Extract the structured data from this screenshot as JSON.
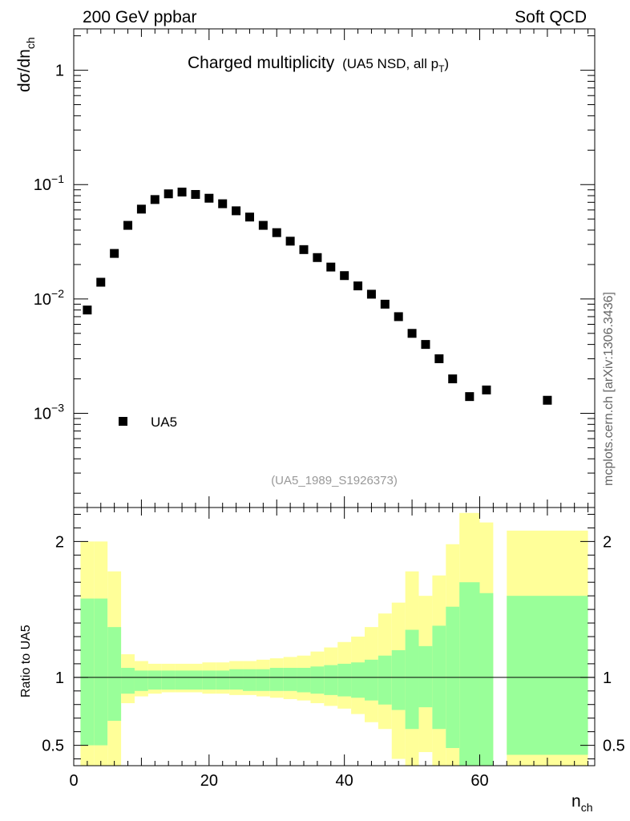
{
  "header": {
    "energy_label": "200 GeV ppbar",
    "process_label": "Soft QCD"
  },
  "side_label": "mcplots.cern.ch [arXiv:1306.3436]",
  "chart_data": [
    {
      "type": "scatter",
      "title": "Charged multiplicity",
      "subtitle": "(UA5 NSD, all p",
      "subtitle_sub": "T",
      "subtitle_end": ")",
      "analysis_id": "(UA5_1989_S1926373)",
      "xlabel": "n",
      "xlabel_sub": "ch",
      "ylabel": "dσ/dn",
      "ylabel_sub": "ch",
      "yscale": "log",
      "xlim": [
        0,
        77
      ],
      "ylim": [
        0.00015,
        2.3
      ],
      "y_ticks": [
        {
          "value": 1,
          "base": "1",
          "exp": ""
        },
        {
          "value": 0.1,
          "base": "10",
          "exp": "−1"
        },
        {
          "value": 0.01,
          "base": "10",
          "exp": "−2"
        },
        {
          "value": 0.001,
          "base": "10",
          "exp": "−3"
        }
      ],
      "legend": [
        {
          "label": "UA5",
          "marker": "square",
          "color": "#000000"
        }
      ],
      "series": [
        {
          "name": "UA5",
          "x": [
            2,
            4,
            6,
            8,
            10,
            12,
            14,
            16,
            18,
            20,
            22,
            24,
            26,
            28,
            30,
            32,
            34,
            36,
            38,
            40,
            42,
            44,
            46,
            48,
            50,
            52,
            54,
            56,
            58.5,
            61,
            70
          ],
          "y": [
            0.008,
            0.014,
            0.025,
            0.044,
            0.061,
            0.074,
            0.083,
            0.086,
            0.082,
            0.076,
            0.068,
            0.059,
            0.052,
            0.044,
            0.038,
            0.032,
            0.027,
            0.023,
            0.019,
            0.016,
            0.013,
            0.011,
            0.009,
            0.007,
            0.005,
            0.004,
            0.003,
            0.002,
            0.0014,
            0.0016,
            0.0013
          ]
        }
      ]
    },
    {
      "type": "area",
      "ylabel": "Ratio to UA5",
      "xlim": [
        0,
        77
      ],
      "ylim": [
        0.35,
        2.25
      ],
      "x_ticks": [
        0,
        20,
        40,
        60
      ],
      "y_ticks": [
        0.5,
        1,
        2
      ],
      "y_tick_labels": [
        "0.5",
        "1",
        "2"
      ],
      "reference_line": 1,
      "colors": {
        "inner_band": "#99ff99",
        "outer_band": "#ffff99",
        "line": "#000000"
      },
      "bins": [
        {
          "x0": 1,
          "x1": 3,
          "in_lo": 0.5,
          "in_hi": 1.58,
          "out_lo": 0.3,
          "out_hi": 2.0
        },
        {
          "x0": 3,
          "x1": 5,
          "in_lo": 0.5,
          "in_hi": 1.58,
          "out_lo": 0.3,
          "out_hi": 2.0
        },
        {
          "x0": 5,
          "x1": 7,
          "in_lo": 0.68,
          "in_hi": 1.37,
          "out_lo": 0.3,
          "out_hi": 1.78
        },
        {
          "x0": 7,
          "x1": 9,
          "in_lo": 0.88,
          "in_hi": 1.07,
          "out_lo": 0.81,
          "out_hi": 1.17
        },
        {
          "x0": 9,
          "x1": 11,
          "in_lo": 0.9,
          "in_hi": 1.05,
          "out_lo": 0.86,
          "out_hi": 1.12
        },
        {
          "x0": 11,
          "x1": 13,
          "in_lo": 0.91,
          "in_hi": 1.05,
          "out_lo": 0.88,
          "out_hi": 1.1
        },
        {
          "x0": 13,
          "x1": 15,
          "in_lo": 0.91,
          "in_hi": 1.05,
          "out_lo": 0.89,
          "out_hi": 1.1
        },
        {
          "x0": 15,
          "x1": 17,
          "in_lo": 0.91,
          "in_hi": 1.05,
          "out_lo": 0.89,
          "out_hi": 1.1
        },
        {
          "x0": 17,
          "x1": 19,
          "in_lo": 0.91,
          "in_hi": 1.05,
          "out_lo": 0.89,
          "out_hi": 1.1
        },
        {
          "x0": 19,
          "x1": 21,
          "in_lo": 0.91,
          "in_hi": 1.05,
          "out_lo": 0.88,
          "out_hi": 1.11
        },
        {
          "x0": 21,
          "x1": 23,
          "in_lo": 0.91,
          "in_hi": 1.05,
          "out_lo": 0.88,
          "out_hi": 1.11
        },
        {
          "x0": 23,
          "x1": 25,
          "in_lo": 0.91,
          "in_hi": 1.06,
          "out_lo": 0.87,
          "out_hi": 1.12
        },
        {
          "x0": 25,
          "x1": 27,
          "in_lo": 0.9,
          "in_hi": 1.06,
          "out_lo": 0.87,
          "out_hi": 1.12
        },
        {
          "x0": 27,
          "x1": 29,
          "in_lo": 0.9,
          "in_hi": 1.06,
          "out_lo": 0.86,
          "out_hi": 1.13
        },
        {
          "x0": 29,
          "x1": 31,
          "in_lo": 0.9,
          "in_hi": 1.07,
          "out_lo": 0.85,
          "out_hi": 1.14
        },
        {
          "x0": 31,
          "x1": 33,
          "in_lo": 0.9,
          "in_hi": 1.07,
          "out_lo": 0.84,
          "out_hi": 1.15
        },
        {
          "x0": 33,
          "x1": 35,
          "in_lo": 0.89,
          "in_hi": 1.07,
          "out_lo": 0.83,
          "out_hi": 1.16
        },
        {
          "x0": 35,
          "x1": 37,
          "in_lo": 0.88,
          "in_hi": 1.08,
          "out_lo": 0.81,
          "out_hi": 1.19
        },
        {
          "x0": 37,
          "x1": 39,
          "in_lo": 0.87,
          "in_hi": 1.09,
          "out_lo": 0.79,
          "out_hi": 1.22
        },
        {
          "x0": 39,
          "x1": 41,
          "in_lo": 0.86,
          "in_hi": 1.1,
          "out_lo": 0.77,
          "out_hi": 1.26
        },
        {
          "x0": 41,
          "x1": 43,
          "in_lo": 0.85,
          "in_hi": 1.11,
          "out_lo": 0.73,
          "out_hi": 1.3
        },
        {
          "x0": 43,
          "x1": 45,
          "in_lo": 0.83,
          "in_hi": 1.13,
          "out_lo": 0.67,
          "out_hi": 1.37
        },
        {
          "x0": 45,
          "x1": 47,
          "in_lo": 0.8,
          "in_hi": 1.16,
          "out_lo": 0.62,
          "out_hi": 1.47
        },
        {
          "x0": 47,
          "x1": 49,
          "in_lo": 0.76,
          "in_hi": 1.2,
          "out_lo": 0.4,
          "out_hi": 1.55
        },
        {
          "x0": 49,
          "x1": 51,
          "in_lo": 0.62,
          "in_hi": 1.35,
          "out_lo": 0.3,
          "out_hi": 1.78
        },
        {
          "x0": 51,
          "x1": 53,
          "in_lo": 0.78,
          "in_hi": 1.23,
          "out_lo": 0.45,
          "out_hi": 1.6
        },
        {
          "x0": 53,
          "x1": 55,
          "in_lo": 0.62,
          "in_hi": 1.38,
          "out_lo": 0.3,
          "out_hi": 1.75
        },
        {
          "x0": 55,
          "x1": 57,
          "in_lo": 0.48,
          "in_hi": 1.52,
          "out_lo": 0.3,
          "out_hi": 1.98
        },
        {
          "x0": 57,
          "x1": 60,
          "in_lo": 0.3,
          "in_hi": 1.7,
          "out_lo": 0.3,
          "out_hi": 2.21
        },
        {
          "x0": 60,
          "x1": 62,
          "in_lo": 0.3,
          "in_hi": 1.62,
          "out_lo": 0.38,
          "out_hi": 2.14
        },
        {
          "x0": 64,
          "x1": 76,
          "in_lo": 0.43,
          "in_hi": 1.6,
          "out_lo": 0.3,
          "out_hi": 2.08
        }
      ]
    }
  ]
}
